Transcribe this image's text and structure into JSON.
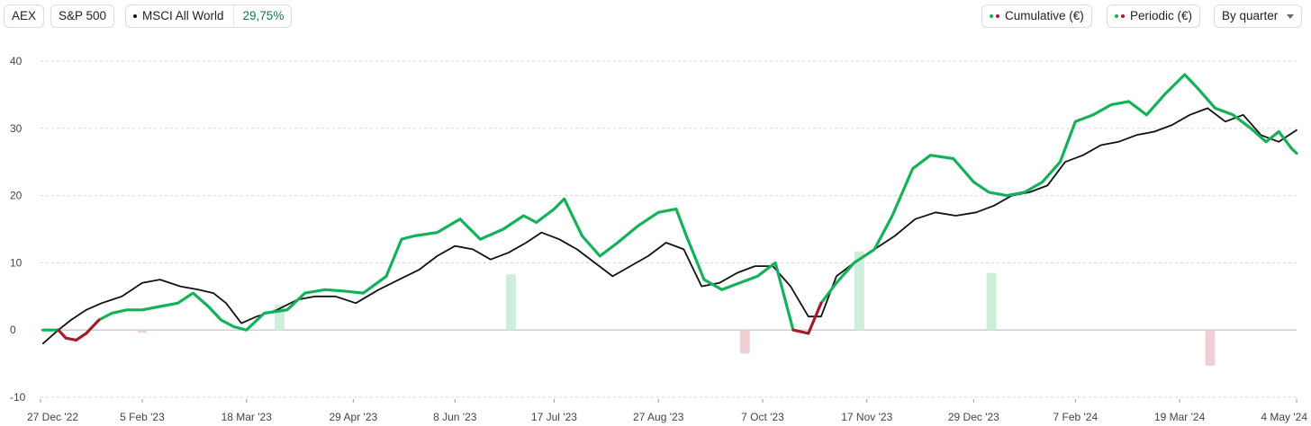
{
  "toolbar": {
    "benchmarks": [
      {
        "label": "AEX"
      },
      {
        "label": "S&P 500"
      },
      {
        "label": "MSCI All World",
        "value": "29,75%"
      }
    ],
    "toggles": [
      {
        "label": "Cumulative (€)"
      },
      {
        "label": "Periodic (€)"
      }
    ],
    "period_select": "By quarter"
  },
  "colors": {
    "portfolio": "#14b15a",
    "benchmark": "#111111",
    "negative": "#b0162c",
    "bar_positive": "#cdeedb",
    "bar_negative": "#efd0d4",
    "grid": "#d6d6d6",
    "zero_line": "#bdbdbd"
  },
  "chart_data": {
    "type": "line",
    "title": "",
    "xlabel": "",
    "ylabel": "",
    "ylim": [
      -10,
      40
    ],
    "yticks": [
      -10,
      0,
      10,
      20,
      30,
      40
    ],
    "xlim": [
      "2022-12-27",
      "2024-05-04"
    ],
    "xticks": [
      {
        "date": "2022-12-27",
        "label": "27 Dec '22"
      },
      {
        "date": "2023-02-05",
        "label": "5 Feb '23"
      },
      {
        "date": "2023-03-18",
        "label": "18 Mar '23"
      },
      {
        "date": "2023-04-29",
        "label": "29 Apr '23"
      },
      {
        "date": "2023-06-08",
        "label": "8 Jun '23"
      },
      {
        "date": "2023-07-17",
        "label": "17 Jul '23"
      },
      {
        "date": "2023-08-27",
        "label": "27 Aug '23"
      },
      {
        "date": "2023-10-07",
        "label": "7 Oct '23"
      },
      {
        "date": "2023-11-17",
        "label": "17 Nov '23"
      },
      {
        "date": "2023-12-29",
        "label": "29 Dec '23"
      },
      {
        "date": "2024-02-07",
        "label": "7 Feb '24"
      },
      {
        "date": "2024-03-19",
        "label": "19 Mar '24"
      },
      {
        "date": "2024-05-04",
        "label": "4 May '24"
      }
    ],
    "grid": true,
    "series": [
      {
        "name": "Cumulative (€)",
        "x": [
          "2022-12-28",
          "2023-01-03",
          "2023-01-06",
          "2023-01-10",
          "2023-01-14",
          "2023-01-19",
          "2023-01-24",
          "2023-01-30",
          "2023-02-05",
          "2023-02-12",
          "2023-02-19",
          "2023-02-25",
          "2023-03-03",
          "2023-03-08",
          "2023-03-13",
          "2023-03-18",
          "2023-03-25",
          "2023-04-03",
          "2023-04-10",
          "2023-04-18",
          "2023-04-25",
          "2023-05-03",
          "2023-05-12",
          "2023-05-18",
          "2023-05-23",
          "2023-06-01",
          "2023-06-10",
          "2023-06-18",
          "2023-06-27",
          "2023-07-05",
          "2023-07-10",
          "2023-07-17",
          "2023-07-21",
          "2023-07-28",
          "2023-08-04",
          "2023-08-11",
          "2023-08-19",
          "2023-08-27",
          "2023-09-03",
          "2023-09-07",
          "2023-09-14",
          "2023-09-21",
          "2023-09-28",
          "2023-10-05",
          "2023-10-12",
          "2023-10-19",
          "2023-10-25",
          "2023-10-30",
          "2023-11-05",
          "2023-11-12",
          "2023-11-20",
          "2023-11-27",
          "2023-12-05",
          "2023-12-12",
          "2023-12-21",
          "2023-12-29",
          "2024-01-04",
          "2024-01-11",
          "2024-01-18",
          "2024-01-25",
          "2024-02-01",
          "2024-02-07",
          "2024-02-14",
          "2024-02-21",
          "2024-02-28",
          "2024-03-06",
          "2024-03-13",
          "2024-03-21",
          "2024-03-26",
          "2024-04-02",
          "2024-04-09",
          "2024-04-16",
          "2024-04-22",
          "2024-04-27",
          "2024-05-02",
          "2024-05-04"
        ],
        "y": [
          0.0,
          0.0,
          -1.2,
          -1.5,
          -0.5,
          1.5,
          2.5,
          3.0,
          3.0,
          3.5,
          4.0,
          5.5,
          3.5,
          1.5,
          0.5,
          0.0,
          2.5,
          3.0,
          5.5,
          6.0,
          5.8,
          5.5,
          8.0,
          13.5,
          14.0,
          14.5,
          16.5,
          13.5,
          15.0,
          17.0,
          16.0,
          18.0,
          19.5,
          14.0,
          11.0,
          13.0,
          15.5,
          17.5,
          18.0,
          14.0,
          7.5,
          6.0,
          7.0,
          8.0,
          10.0,
          0.0,
          -0.5,
          4.0,
          7.0,
          10.0,
          12.0,
          17.0,
          24.0,
          26.0,
          25.5,
          22.0,
          20.5,
          20.0,
          20.5,
          22.0,
          25.0,
          31.0,
          32.0,
          33.5,
          34.0,
          32.0,
          35.0,
          38.0,
          36.0,
          33.0,
          32.0,
          30.0,
          28.0,
          29.5,
          27.0,
          26.3
        ]
      },
      {
        "name": "MSCI All World",
        "x": [
          "2022-12-28",
          "2023-01-03",
          "2023-01-08",
          "2023-01-14",
          "2023-01-20",
          "2023-01-28",
          "2023-02-05",
          "2023-02-12",
          "2023-02-20",
          "2023-02-27",
          "2023-03-05",
          "2023-03-10",
          "2023-03-16",
          "2023-03-22",
          "2023-03-30",
          "2023-04-07",
          "2023-04-14",
          "2023-04-22",
          "2023-04-30",
          "2023-05-09",
          "2023-05-17",
          "2023-05-25",
          "2023-06-01",
          "2023-06-08",
          "2023-06-15",
          "2023-06-22",
          "2023-06-29",
          "2023-07-06",
          "2023-07-12",
          "2023-07-19",
          "2023-07-26",
          "2023-08-02",
          "2023-08-09",
          "2023-08-16",
          "2023-08-23",
          "2023-08-30",
          "2023-09-06",
          "2023-09-13",
          "2023-09-20",
          "2023-09-27",
          "2023-10-04",
          "2023-10-11",
          "2023-10-18",
          "2023-10-25",
          "2023-10-30",
          "2023-11-05",
          "2023-11-12",
          "2023-11-20",
          "2023-11-28",
          "2023-12-06",
          "2023-12-14",
          "2023-12-22",
          "2023-12-30",
          "2024-01-06",
          "2024-01-13",
          "2024-01-20",
          "2024-01-27",
          "2024-02-03",
          "2024-02-10",
          "2024-02-17",
          "2024-02-24",
          "2024-03-02",
          "2024-03-09",
          "2024-03-16",
          "2024-03-23",
          "2024-03-30",
          "2024-04-06",
          "2024-04-13",
          "2024-04-20",
          "2024-04-27",
          "2024-05-04"
        ],
        "y": [
          -2.0,
          0.0,
          1.5,
          3.0,
          4.0,
          5.0,
          7.0,
          7.5,
          6.5,
          6.0,
          5.5,
          4.0,
          1.0,
          2.0,
          3.0,
          4.5,
          5.0,
          5.0,
          4.0,
          6.0,
          7.5,
          9.0,
          11.0,
          12.5,
          12.0,
          10.5,
          11.5,
          13.0,
          14.5,
          13.5,
          12.0,
          10.0,
          8.0,
          9.5,
          11.0,
          13.0,
          12.0,
          6.5,
          7.0,
          8.5,
          9.5,
          9.5,
          6.5,
          2.0,
          2.0,
          8.0,
          10.0,
          12.0,
          14.0,
          16.5,
          17.5,
          17.0,
          17.5,
          18.5,
          20.0,
          20.5,
          21.5,
          25.0,
          26.0,
          27.5,
          28.0,
          29.0,
          29.5,
          30.5,
          32.0,
          33.0,
          31.0,
          32.0,
          29.0,
          28.0,
          29.75
        ]
      }
    ],
    "periodic_bars": [
      {
        "date": "2023-03-31",
        "value": 3.8
      },
      {
        "date": "2023-06-30",
        "value": 8.3
      },
      {
        "date": "2023-09-30",
        "value": -3.5
      },
      {
        "date": "2023-11-14",
        "value": 11.7
      },
      {
        "date": "2024-01-05",
        "value": 8.5
      },
      {
        "date": "2024-03-31",
        "value": -5.3
      }
    ],
    "extra_marks": [
      {
        "date": "2023-02-05",
        "value": -0.4
      }
    ]
  }
}
